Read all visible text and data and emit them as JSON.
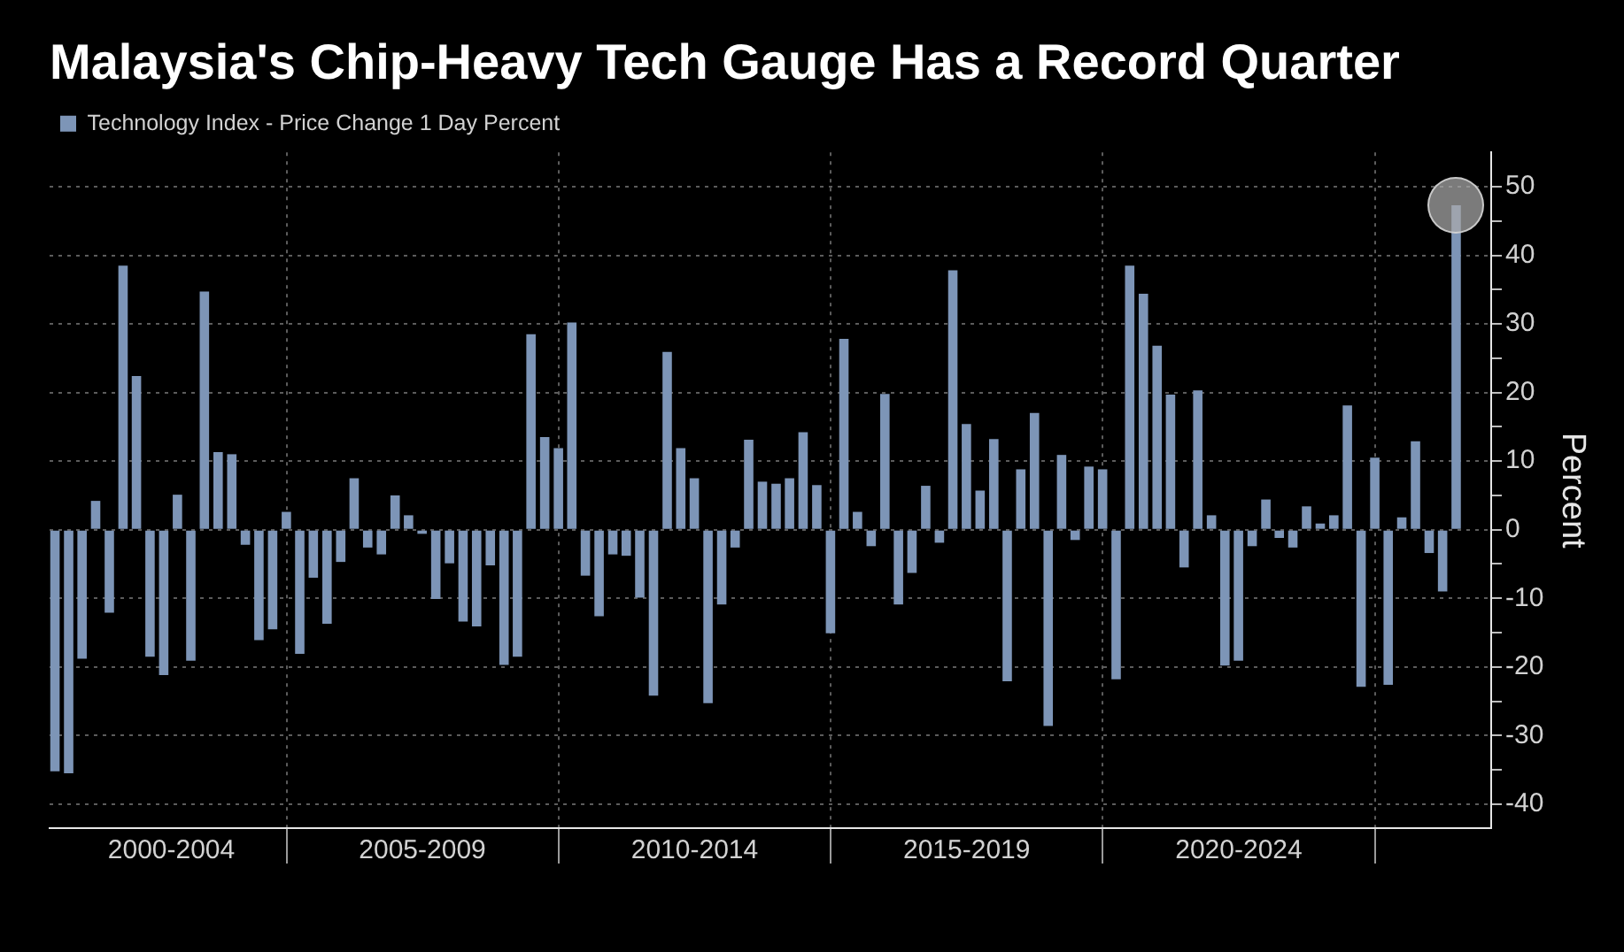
{
  "chart_data": {
    "type": "bar",
    "title": "Malaysia's Chip-Heavy Tech Gauge Has a Record Quarter",
    "ylabel": "Percent",
    "x": [
      "2000-09-30",
      "2000-12-31",
      "2001-03-31",
      "2001-06-30",
      "2001-09-30",
      "2001-12-31",
      "2002-03-31",
      "2002-06-30",
      "2002-09-30",
      "2002-12-31",
      "2003-03-31",
      "2003-06-30",
      "2003-09-30",
      "2003-12-31",
      "2004-03-31",
      "2004-06-30",
      "2004-09-30",
      "2004-12-31",
      "2005-03-31",
      "2005-06-30",
      "2005-09-30",
      "2005-12-31",
      "2006-03-31",
      "2006-06-30",
      "2006-09-30",
      "2006-12-31",
      "2007-03-31",
      "2007-06-30",
      "2007-09-30",
      "2007-12-31",
      "2008-03-31",
      "2008-06-30",
      "2008-09-30",
      "2008-12-31",
      "2009-03-31",
      "2009-06-30",
      "2009-09-30",
      "2009-12-31",
      "2010-03-31",
      "2010-06-30",
      "2010-09-30",
      "2010-12-31",
      "2011-03-31",
      "2011-06-30",
      "2011-09-30",
      "2011-12-31",
      "2012-03-31",
      "2012-06-30",
      "2012-09-30",
      "2012-12-31",
      "2013-03-31",
      "2013-06-30",
      "2013-09-30",
      "2013-12-31",
      "2014-03-31",
      "2014-06-30",
      "2014-09-30",
      "2014-12-31",
      "2015-03-31",
      "2015-06-30",
      "2015-09-30",
      "2015-12-31",
      "2016-03-31",
      "2016-06-30",
      "2016-09-30",
      "2016-12-31",
      "2017-03-31",
      "2017-06-30",
      "2017-09-30",
      "2017-12-31",
      "2018-03-31",
      "2018-06-30",
      "2018-09-30",
      "2018-12-31",
      "2019-03-31",
      "2019-06-30",
      "2019-09-30",
      "2019-12-31",
      "2020-03-31",
      "2020-06-30",
      "2020-09-30",
      "2020-12-31",
      "2021-03-31",
      "2021-06-30",
      "2021-09-30",
      "2021-12-31",
      "2022-03-31",
      "2022-06-30",
      "2022-09-30",
      "2022-12-31",
      "2023-03-31",
      "2023-06-30",
      "2023-09-30",
      "2023-12-31",
      "2024-03-31",
      "2024-06-30",
      "2024-09-30",
      "2024-12-31",
      "2025-03-31",
      "2025-06-30",
      "2025-09-30",
      "2025-12-31",
      "2026-03-31",
      "2026-06-30"
    ],
    "series": [
      {
        "name": "Technology Index - Price Change 1 Day Percent",
        "color": "#7d95b7",
        "values": [
          -35.2,
          -35.5,
          -18.8,
          4.2,
          -12.1,
          38.5,
          22.4,
          -18.5,
          -21.2,
          5.1,
          -19.1,
          34.7,
          11.3,
          11.0,
          -2.2,
          -16.1,
          -14.5,
          2.6,
          -18.1,
          -7.0,
          -13.7,
          -4.7,
          7.5,
          -2.6,
          -3.6,
          5.0,
          2.1,
          -0.6,
          -10.1,
          -4.9,
          -13.4,
          -14.1,
          -5.2,
          -19.7,
          -18.5,
          28.5,
          13.5,
          11.9,
          30.2,
          -6.7,
          -12.6,
          -3.6,
          -3.8,
          -9.9,
          -24.2,
          25.9,
          11.9,
          7.5,
          -25.3,
          -10.9,
          -2.6,
          13.1,
          7.0,
          6.7,
          7.5,
          14.2,
          6.5,
          -15.1,
          27.8,
          2.6,
          -2.4,
          19.8,
          -10.9,
          -6.3,
          6.4,
          -1.9,
          37.8,
          15.4,
          5.7,
          13.2,
          -22.1,
          8.8,
          17.0,
          -28.6,
          10.9,
          -1.5,
          9.2,
          8.8,
          -21.8,
          38.5,
          34.4,
          26.8,
          19.7,
          -5.5,
          20.3,
          2.1,
          -19.8,
          -19.1,
          -2.4,
          4.4,
          -1.2,
          -2.6,
          3.4,
          0.9,
          2.1,
          18.1,
          -22.9,
          10.5,
          -22.6,
          1.8,
          12.9,
          -3.4,
          -9.0,
          47.3
        ]
      }
    ],
    "xlim": [
      "2000-08-25",
      "2027-02-20"
    ],
    "xticks": [
      {
        "value": "2002-11-20",
        "label": "2000-2004"
      },
      {
        "value": "2005-01-01",
        "label": null
      },
      {
        "value": "2007-07-02",
        "label": "2005-2009"
      },
      {
        "value": "2010-01-01",
        "label": null
      },
      {
        "value": "2012-07-02",
        "label": "2010-2014"
      },
      {
        "value": "2015-01-01",
        "label": null
      },
      {
        "value": "2017-07-02",
        "label": "2015-2019"
      },
      {
        "value": "2020-01-01",
        "label": null
      },
      {
        "value": "2022-07-02",
        "label": "2020-2024"
      },
      {
        "value": "2025-01-01",
        "label": null
      }
    ],
    "ylim": [
      -43.5,
      55
    ],
    "yticks": [
      -40,
      {
        "value": -35,
        "label": null
      },
      -30,
      {
        "value": -25,
        "label": null
      },
      -20,
      {
        "value": -15,
        "label": null
      },
      -10,
      {
        "value": -5,
        "label": null
      },
      0,
      {
        "value": 5,
        "label": null
      },
      10,
      {
        "value": 15,
        "label": null
      },
      20,
      {
        "value": 25,
        "label": null
      },
      30,
      {
        "value": 35,
        "label": null
      },
      40,
      {
        "value": 45,
        "label": null
      },
      50
    ],
    "grid": true,
    "legend": "top left"
  }
}
